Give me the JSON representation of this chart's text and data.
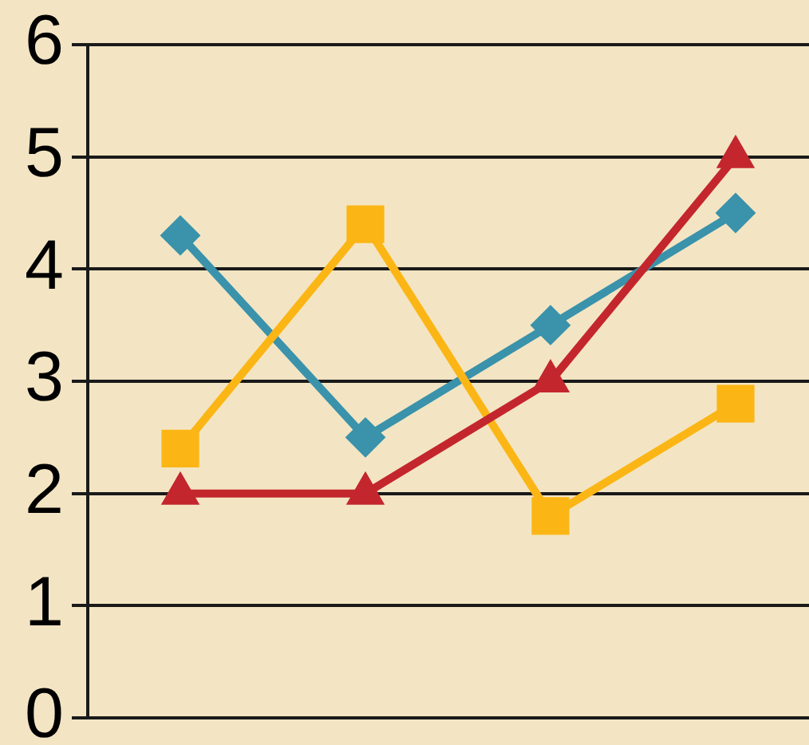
{
  "chart_data": {
    "type": "line",
    "categories": [
      null,
      null,
      null,
      null
    ],
    "series": [
      {
        "color": "#3a92ab",
        "marker": "diamond",
        "values": [
          4.3,
          2.5,
          3.5,
          4.5
        ]
      },
      {
        "color": "#fbb616",
        "marker": "square",
        "values": [
          2.4,
          4.4,
          1.8,
          2.8
        ]
      },
      {
        "color": "#c4262e",
        "marker": "triangle",
        "values": [
          2,
          2,
          3,
          5
        ]
      }
    ],
    "ylim": [
      0,
      6
    ],
    "yticks": [
      0,
      1,
      2,
      3,
      4,
      5,
      6
    ],
    "grid": "y",
    "tick_labels": "y"
  }
}
